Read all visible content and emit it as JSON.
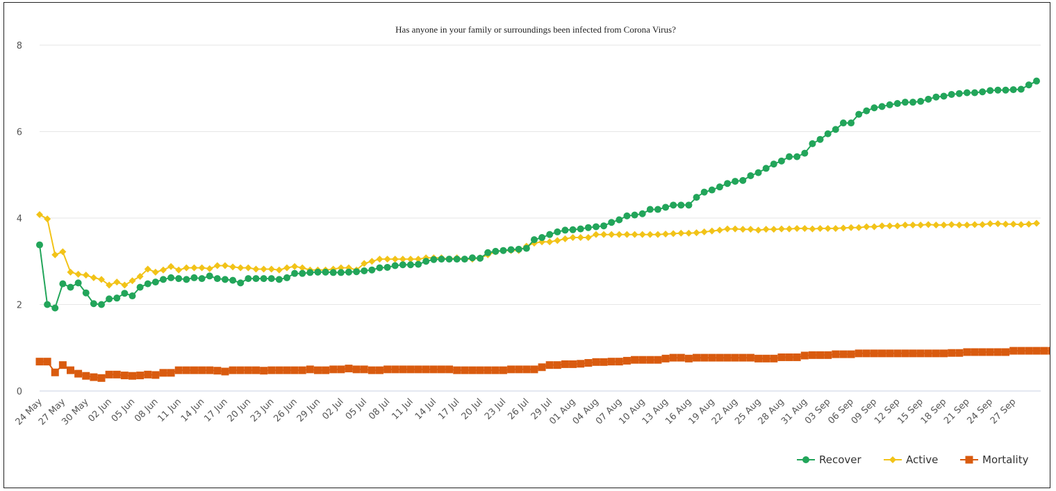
{
  "chart_data": {
    "type": "line",
    "title": "Has anyone in your family or surroundings been infected from Corona Virus?",
    "xlabel": "",
    "ylabel": "",
    "ylim": [
      0,
      8
    ],
    "yticks": [
      0,
      2,
      4,
      6,
      8
    ],
    "grid": true,
    "legend_position": "bottom-right",
    "x_tick_labels": [
      "24 May",
      "27 May",
      "30 May",
      "02 Jun",
      "05 Jun",
      "08 Jun",
      "11 Jun",
      "14 Jun",
      "17 Jun",
      "20 Jun",
      "23 Jun",
      "26 Jun",
      "29 Jun",
      "02 Jul",
      "05 Jul",
      "08 Jul",
      "11 Jul",
      "14 Jul",
      "17 Jul",
      "20 Jul",
      "23 Jul",
      "26 Jul",
      "29 Jul",
      "01 Aug",
      "04 Aug",
      "07 Aug",
      "10 Aug",
      "13 Aug",
      "16 Aug",
      "19 Aug",
      "22 Aug",
      "25 Aug",
      "28 Aug",
      "31 Aug",
      "03 Sep",
      "06 Sep",
      "09 Sep",
      "12 Sep",
      "15 Sep",
      "18 Sep",
      "21 Sep",
      "24 Sep",
      "27 Sep"
    ],
    "series": [
      {
        "name": "Recover",
        "color": "#22a55a",
        "marker": "circle",
        "values": [
          3.38,
          2.0,
          1.92,
          2.48,
          2.4,
          2.5,
          2.27,
          2.02,
          2.0,
          2.13,
          2.15,
          2.26,
          2.2,
          2.4,
          2.48,
          2.52,
          2.58,
          2.62,
          2.6,
          2.58,
          2.62,
          2.6,
          2.66,
          2.6,
          2.58,
          2.56,
          2.5,
          2.6,
          2.6,
          2.6,
          2.6,
          2.58,
          2.62,
          2.72,
          2.72,
          2.74,
          2.75,
          2.75,
          2.74,
          2.74,
          2.75,
          2.76,
          2.78,
          2.8,
          2.85,
          2.86,
          2.9,
          2.92,
          2.92,
          2.93,
          3.0,
          3.04,
          3.05,
          3.05,
          3.05,
          3.05,
          3.08,
          3.07,
          3.2,
          3.23,
          3.25,
          3.27,
          3.28,
          3.3,
          3.5,
          3.55,
          3.62,
          3.68,
          3.72,
          3.73,
          3.75,
          3.78,
          3.8,
          3.82,
          3.9,
          3.96,
          4.05,
          4.07,
          4.1,
          4.2,
          4.2,
          4.25,
          4.3,
          4.3,
          4.3,
          4.48,
          4.6,
          4.65,
          4.72,
          4.8,
          4.85,
          4.87,
          4.98,
          5.05,
          5.15,
          5.25,
          5.32,
          5.42,
          5.42,
          5.5,
          5.72,
          5.82,
          5.95,
          6.05,
          6.2,
          6.2,
          6.4,
          6.48,
          6.55,
          6.58,
          6.62,
          6.65,
          6.68,
          6.68,
          6.7,
          6.75,
          6.8,
          6.82,
          6.86,
          6.88,
          6.9,
          6.9,
          6.92,
          6.95,
          6.96,
          6.96,
          6.97,
          6.98,
          7.08,
          7.17
        ]
      },
      {
        "name": "Active",
        "color": "#f2c318",
        "marker": "diamond",
        "values": [
          4.08,
          3.98,
          3.15,
          3.22,
          2.75,
          2.7,
          2.68,
          2.62,
          2.58,
          2.45,
          2.52,
          2.45,
          2.55,
          2.65,
          2.82,
          2.75,
          2.8,
          2.88,
          2.8,
          2.85,
          2.85,
          2.85,
          2.83,
          2.9,
          2.9,
          2.87,
          2.85,
          2.85,
          2.82,
          2.82,
          2.82,
          2.8,
          2.85,
          2.88,
          2.85,
          2.8,
          2.8,
          2.8,
          2.82,
          2.85,
          2.85,
          2.8,
          2.95,
          3.0,
          3.05,
          3.05,
          3.05,
          3.05,
          3.05,
          3.05,
          3.08,
          3.08,
          3.08,
          3.05,
          3.08,
          3.05,
          3.05,
          3.08,
          3.15,
          3.22,
          3.25,
          3.25,
          3.25,
          3.35,
          3.42,
          3.45,
          3.45,
          3.48,
          3.52,
          3.55,
          3.55,
          3.55,
          3.62,
          3.62,
          3.62,
          3.62,
          3.62,
          3.62,
          3.62,
          3.62,
          3.62,
          3.63,
          3.64,
          3.65,
          3.65,
          3.66,
          3.68,
          3.7,
          3.72,
          3.75,
          3.75,
          3.74,
          3.74,
          3.72,
          3.74,
          3.74,
          3.75,
          3.75,
          3.76,
          3.76,
          3.75,
          3.76,
          3.76,
          3.76,
          3.77,
          3.78,
          3.78,
          3.8,
          3.8,
          3.82,
          3.82,
          3.82,
          3.84,
          3.84,
          3.84,
          3.85,
          3.84,
          3.84,
          3.85,
          3.84,
          3.84,
          3.85,
          3.85,
          3.87,
          3.87,
          3.86,
          3.86,
          3.85,
          3.86,
          3.88
        ]
      },
      {
        "name": "Mortality",
        "color": "#d95b0f",
        "marker": "square",
        "values": [
          0.68,
          0.68,
          0.43,
          0.6,
          0.48,
          0.4,
          0.35,
          0.32,
          0.3,
          0.38,
          0.38,
          0.36,
          0.35,
          0.36,
          0.38,
          0.37,
          0.42,
          0.42,
          0.48,
          0.48,
          0.48,
          0.48,
          0.48,
          0.47,
          0.45,
          0.48,
          0.48,
          0.48,
          0.48,
          0.47,
          0.48,
          0.48,
          0.48,
          0.48,
          0.48,
          0.5,
          0.48,
          0.48,
          0.5,
          0.5,
          0.52,
          0.5,
          0.5,
          0.48,
          0.48,
          0.5,
          0.5,
          0.5,
          0.5,
          0.5,
          0.5,
          0.5,
          0.5,
          0.5,
          0.48,
          0.48,
          0.48,
          0.48,
          0.48,
          0.48,
          0.48,
          0.5,
          0.5,
          0.5,
          0.5,
          0.55,
          0.6,
          0.6,
          0.62,
          0.62,
          0.63,
          0.65,
          0.67,
          0.67,
          0.68,
          0.68,
          0.7,
          0.72,
          0.72,
          0.72,
          0.72,
          0.75,
          0.77,
          0.77,
          0.75,
          0.77,
          0.77,
          0.77,
          0.77,
          0.77,
          0.77,
          0.77,
          0.77,
          0.75,
          0.75,
          0.75,
          0.78,
          0.78,
          0.78,
          0.82,
          0.83,
          0.83,
          0.83,
          0.85,
          0.85,
          0.85,
          0.87,
          0.87,
          0.87,
          0.87,
          0.87,
          0.87,
          0.87,
          0.87,
          0.87,
          0.87,
          0.87,
          0.87,
          0.88,
          0.88,
          0.9,
          0.9,
          0.9,
          0.9,
          0.9,
          0.9,
          0.93,
          0.93,
          0.93,
          0.93,
          0.93,
          0.93,
          0.95
        ]
      }
    ]
  }
}
